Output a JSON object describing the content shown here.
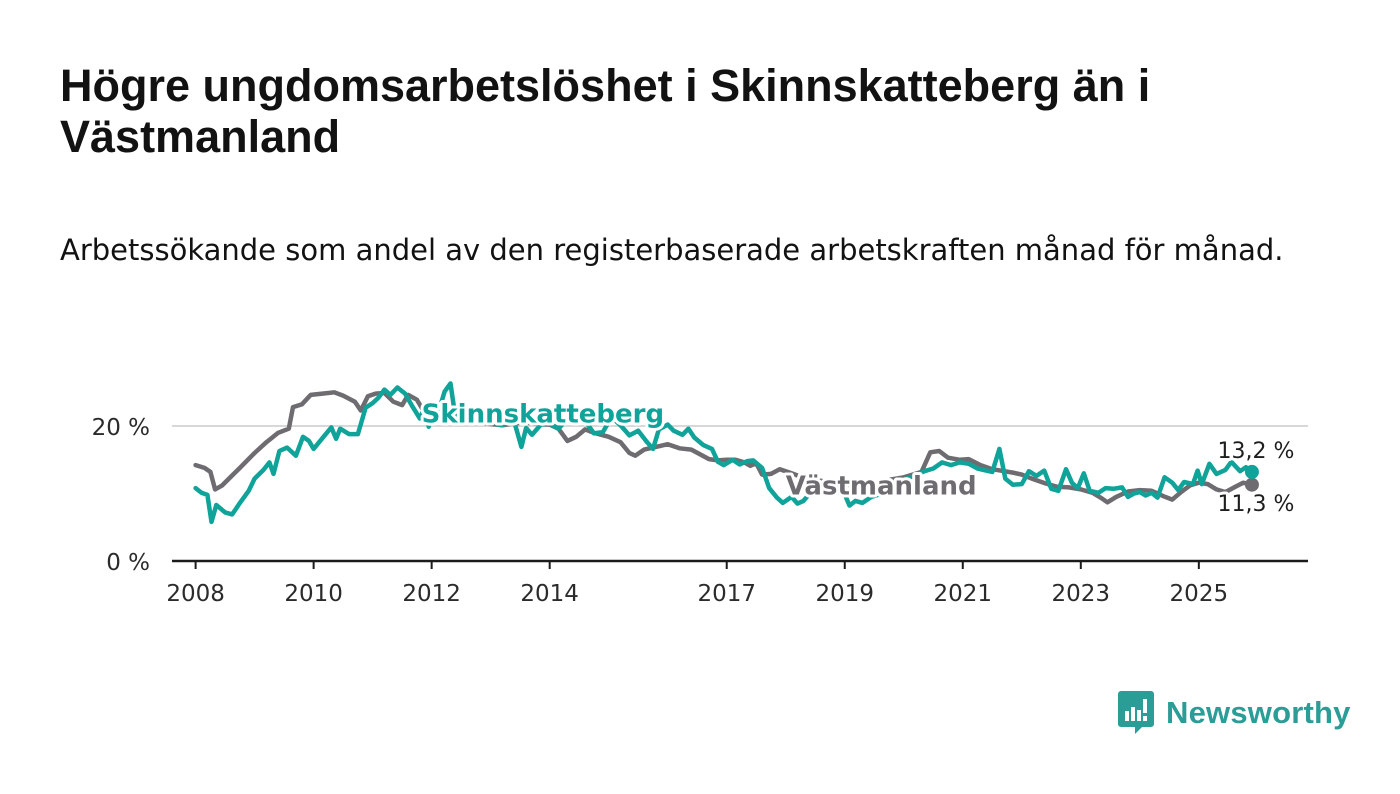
{
  "title": "Högre ungdomsarbetslöshet i Skinnskatteberg än i Västmanland",
  "subtitle": "Arbetssökande som andel av den registerbaserade arbetskraften månad för månad.",
  "logo_text": "Newsworthy",
  "colors": {
    "skinnskatteberg": "#0fa39a",
    "vastmanland": "#6e6c71",
    "axis": "#1b1b1b",
    "grid": "#d8d8d8",
    "logo": "#2a9d96"
  },
  "chart_data": {
    "type": "line",
    "title": "Högre ungdomsarbetslöshet i Skinnskatteberg än i Västmanland",
    "ylim": [
      0,
      25
    ],
    "xlim": [
      2007.6,
      2026.85
    ],
    "y_ticks": [
      {
        "value": 0,
        "label": "0 %"
      },
      {
        "value": 20,
        "label": "20 %"
      }
    ],
    "x_ticks": [
      {
        "value": 2008,
        "label": "2008"
      },
      {
        "value": 2010,
        "label": "2010"
      },
      {
        "value": 2012,
        "label": "2012"
      },
      {
        "value": 2014,
        "label": "2014"
      },
      {
        "value": 2017,
        "label": "2017"
      },
      {
        "value": 2019,
        "label": "2019"
      },
      {
        "value": 2021,
        "label": "2021"
      },
      {
        "value": 2023,
        "label": "2023"
      },
      {
        "value": 2025,
        "label": "2025"
      }
    ],
    "series": [
      {
        "name": "Västmanland",
        "label": "Västmanland",
        "end_label": "11,3 %",
        "points": [
          [
            2008.0,
            14.2
          ],
          [
            2008.15,
            13.8
          ],
          [
            2008.25,
            13.2
          ],
          [
            2008.33,
            10.6
          ],
          [
            2008.45,
            11.2
          ],
          [
            2008.6,
            12.5
          ],
          [
            2008.75,
            13.8
          ],
          [
            2009.0,
            16.0
          ],
          [
            2009.2,
            17.6
          ],
          [
            2009.4,
            19.0
          ],
          [
            2009.58,
            19.6
          ],
          [
            2009.65,
            22.8
          ],
          [
            2009.8,
            23.2
          ],
          [
            2009.95,
            24.6
          ],
          [
            2010.15,
            24.8
          ],
          [
            2010.35,
            25.0
          ],
          [
            2010.5,
            24.5
          ],
          [
            2010.7,
            23.6
          ],
          [
            2010.8,
            22.3
          ],
          [
            2010.92,
            24.4
          ],
          [
            2011.05,
            24.8
          ],
          [
            2011.2,
            24.9
          ],
          [
            2011.35,
            23.6
          ],
          [
            2011.5,
            23.1
          ],
          [
            2011.6,
            24.6
          ],
          [
            2011.75,
            23.9
          ],
          [
            2011.85,
            22.4
          ],
          [
            2011.95,
            22.5
          ],
          [
            2012.05,
            22.8
          ],
          [
            2012.15,
            21.9
          ],
          [
            2012.3,
            20.8
          ],
          [
            2012.45,
            21.2
          ],
          [
            2012.6,
            20.9
          ],
          [
            2012.8,
            20.6
          ],
          [
            2013.0,
            20.3
          ],
          [
            2013.2,
            20.1
          ],
          [
            2013.4,
            20.4
          ],
          [
            2013.6,
            20.5
          ],
          [
            2013.8,
            20.3
          ],
          [
            2014.0,
            20.2
          ],
          [
            2014.15,
            19.6
          ],
          [
            2014.3,
            17.8
          ],
          [
            2014.45,
            18.4
          ],
          [
            2014.6,
            19.5
          ],
          [
            2014.75,
            19.0
          ],
          [
            2015.0,
            18.4
          ],
          [
            2015.2,
            17.6
          ],
          [
            2015.35,
            16.0
          ],
          [
            2015.45,
            15.6
          ],
          [
            2015.6,
            16.5
          ],
          [
            2015.8,
            16.9
          ],
          [
            2016.0,
            17.3
          ],
          [
            2016.2,
            16.7
          ],
          [
            2016.4,
            16.5
          ],
          [
            2016.55,
            15.8
          ],
          [
            2016.7,
            15.1
          ],
          [
            2016.85,
            14.9
          ],
          [
            2017.0,
            15.0
          ],
          [
            2017.15,
            15.0
          ],
          [
            2017.3,
            14.6
          ],
          [
            2017.4,
            14.1
          ],
          [
            2017.5,
            14.5
          ],
          [
            2017.6,
            12.8
          ],
          [
            2017.75,
            12.9
          ],
          [
            2017.9,
            13.6
          ],
          [
            2018.1,
            13.0
          ],
          [
            2018.25,
            12.5
          ],
          [
            2018.35,
            12.4
          ],
          [
            2018.5,
            12.0
          ],
          [
            2018.65,
            11.8
          ],
          [
            2018.8,
            11.6
          ],
          [
            2019.0,
            11.4
          ],
          [
            2019.2,
            11.1
          ],
          [
            2019.4,
            11.3
          ],
          [
            2019.6,
            11.7
          ],
          [
            2019.8,
            12.1
          ],
          [
            2020.0,
            12.4
          ],
          [
            2020.15,
            12.8
          ],
          [
            2020.3,
            13.2
          ],
          [
            2020.45,
            16.1
          ],
          [
            2020.6,
            16.3
          ],
          [
            2020.75,
            15.3
          ],
          [
            2020.95,
            15.0
          ],
          [
            2021.1,
            15.1
          ],
          [
            2021.3,
            14.2
          ],
          [
            2021.5,
            13.6
          ],
          [
            2021.7,
            13.3
          ],
          [
            2021.85,
            13.1
          ],
          [
            2022.0,
            12.8
          ],
          [
            2022.2,
            12.1
          ],
          [
            2022.4,
            11.5
          ],
          [
            2022.6,
            11.0
          ],
          [
            2022.8,
            10.9
          ],
          [
            2023.0,
            10.6
          ],
          [
            2023.2,
            10.1
          ],
          [
            2023.35,
            9.3
          ],
          [
            2023.45,
            8.7
          ],
          [
            2023.6,
            9.5
          ],
          [
            2023.8,
            10.3
          ],
          [
            2024.0,
            10.5
          ],
          [
            2024.2,
            10.4
          ],
          [
            2024.4,
            9.6
          ],
          [
            2024.55,
            9.1
          ],
          [
            2024.7,
            10.2
          ],
          [
            2024.85,
            11.2
          ],
          [
            2025.0,
            11.6
          ],
          [
            2025.15,
            11.4
          ],
          [
            2025.3,
            10.6
          ],
          [
            2025.45,
            10.2
          ],
          [
            2025.6,
            10.9
          ],
          [
            2025.75,
            11.6
          ],
          [
            2025.9,
            11.3
          ]
        ]
      },
      {
        "name": "Skinnskatteberg",
        "label": "Skinnskatteberg",
        "end_label": "13,2 %",
        "points": [
          [
            2008.0,
            10.8
          ],
          [
            2008.1,
            10.1
          ],
          [
            2008.2,
            9.8
          ],
          [
            2008.27,
            5.8
          ],
          [
            2008.35,
            8.3
          ],
          [
            2008.5,
            7.2
          ],
          [
            2008.62,
            6.9
          ],
          [
            2008.75,
            8.6
          ],
          [
            2008.9,
            10.4
          ],
          [
            2009.0,
            12.2
          ],
          [
            2009.15,
            13.5
          ],
          [
            2009.25,
            14.6
          ],
          [
            2009.32,
            12.9
          ],
          [
            2009.42,
            16.3
          ],
          [
            2009.55,
            16.8
          ],
          [
            2009.7,
            15.6
          ],
          [
            2009.82,
            18.4
          ],
          [
            2009.92,
            17.8
          ],
          [
            2010.0,
            16.6
          ],
          [
            2010.15,
            18.2
          ],
          [
            2010.3,
            19.8
          ],
          [
            2010.38,
            18.1
          ],
          [
            2010.45,
            19.6
          ],
          [
            2010.6,
            18.8
          ],
          [
            2010.75,
            18.8
          ],
          [
            2010.88,
            22.7
          ],
          [
            2011.0,
            23.4
          ],
          [
            2011.1,
            24.2
          ],
          [
            2011.2,
            25.4
          ],
          [
            2011.3,
            24.6
          ],
          [
            2011.42,
            25.7
          ],
          [
            2011.55,
            24.8
          ],
          [
            2011.68,
            22.8
          ],
          [
            2011.8,
            21.1
          ],
          [
            2011.88,
            22.8
          ],
          [
            2011.95,
            19.9
          ],
          [
            2012.05,
            22.6
          ],
          [
            2012.15,
            23.1
          ],
          [
            2012.22,
            25.1
          ],
          [
            2012.32,
            26.3
          ],
          [
            2012.4,
            21.4
          ],
          [
            2012.5,
            22.7
          ],
          [
            2012.6,
            21.0
          ],
          [
            2012.7,
            22.4
          ],
          [
            2012.85,
            21.2
          ],
          [
            2013.0,
            21.6
          ],
          [
            2013.1,
            20.3
          ],
          [
            2013.2,
            20.1
          ],
          [
            2013.3,
            21.1
          ],
          [
            2013.4,
            20.6
          ],
          [
            2013.52,
            16.9
          ],
          [
            2013.6,
            19.7
          ],
          [
            2013.7,
            18.7
          ],
          [
            2013.85,
            20.2
          ],
          [
            2014.0,
            20.4
          ],
          [
            2014.15,
            19.6
          ],
          [
            2014.3,
            21.1
          ],
          [
            2014.45,
            21.0
          ],
          [
            2014.6,
            20.8
          ],
          [
            2014.75,
            18.9
          ],
          [
            2014.9,
            19.1
          ],
          [
            2015.05,
            21.3
          ],
          [
            2015.2,
            20.1
          ],
          [
            2015.35,
            18.6
          ],
          [
            2015.5,
            19.3
          ],
          [
            2015.65,
            17.6
          ],
          [
            2015.75,
            16.6
          ],
          [
            2015.85,
            19.5
          ],
          [
            2016.0,
            20.2
          ],
          [
            2016.1,
            19.3
          ],
          [
            2016.25,
            18.7
          ],
          [
            2016.35,
            19.6
          ],
          [
            2016.45,
            18.3
          ],
          [
            2016.6,
            17.2
          ],
          [
            2016.75,
            16.6
          ],
          [
            2016.85,
            14.7
          ],
          [
            2016.95,
            14.2
          ],
          [
            2017.1,
            15.0
          ],
          [
            2017.22,
            14.3
          ],
          [
            2017.35,
            14.8
          ],
          [
            2017.45,
            14.9
          ],
          [
            2017.6,
            13.8
          ],
          [
            2017.72,
            10.8
          ],
          [
            2017.85,
            9.4
          ],
          [
            2017.95,
            8.6
          ],
          [
            2018.1,
            9.5
          ],
          [
            2018.2,
            8.5
          ],
          [
            2018.3,
            8.9
          ],
          [
            2018.45,
            10.4
          ],
          [
            2018.6,
            10.3
          ],
          [
            2018.75,
            9.8
          ],
          [
            2018.9,
            10.2
          ],
          [
            2019.0,
            9.9
          ],
          [
            2019.08,
            8.2
          ],
          [
            2019.18,
            8.9
          ],
          [
            2019.3,
            8.6
          ],
          [
            2019.45,
            9.5
          ],
          [
            2019.6,
            9.9
          ],
          [
            2019.75,
            10.8
          ],
          [
            2019.9,
            11.3
          ],
          [
            2020.05,
            12.2
          ],
          [
            2020.2,
            12.7
          ],
          [
            2020.35,
            13.3
          ],
          [
            2020.5,
            13.7
          ],
          [
            2020.65,
            14.6
          ],
          [
            2020.8,
            14.2
          ],
          [
            2020.95,
            14.6
          ],
          [
            2021.1,
            14.4
          ],
          [
            2021.25,
            13.7
          ],
          [
            2021.35,
            13.5
          ],
          [
            2021.5,
            13.2
          ],
          [
            2021.62,
            16.6
          ],
          [
            2021.72,
            12.2
          ],
          [
            2021.85,
            11.3
          ],
          [
            2022.0,
            11.4
          ],
          [
            2022.12,
            13.3
          ],
          [
            2022.25,
            12.6
          ],
          [
            2022.38,
            13.4
          ],
          [
            2022.5,
            10.7
          ],
          [
            2022.62,
            10.4
          ],
          [
            2022.75,
            13.6
          ],
          [
            2022.85,
            11.6
          ],
          [
            2022.95,
            10.8
          ],
          [
            2023.05,
            13.0
          ],
          [
            2023.15,
            10.4
          ],
          [
            2023.3,
            10.1
          ],
          [
            2023.42,
            10.8
          ],
          [
            2023.55,
            10.7
          ],
          [
            2023.7,
            10.9
          ],
          [
            2023.8,
            9.5
          ],
          [
            2023.9,
            10.0
          ],
          [
            2024.0,
            10.2
          ],
          [
            2024.1,
            9.7
          ],
          [
            2024.2,
            10.1
          ],
          [
            2024.3,
            9.4
          ],
          [
            2024.42,
            12.4
          ],
          [
            2024.55,
            11.6
          ],
          [
            2024.65,
            10.5
          ],
          [
            2024.75,
            11.7
          ],
          [
            2024.9,
            11.4
          ],
          [
            2024.98,
            13.4
          ],
          [
            2025.05,
            11.4
          ],
          [
            2025.18,
            14.4
          ],
          [
            2025.3,
            12.9
          ],
          [
            2025.45,
            13.5
          ],
          [
            2025.55,
            14.7
          ],
          [
            2025.7,
            13.3
          ],
          [
            2025.8,
            13.9
          ],
          [
            2025.9,
            13.2
          ]
        ]
      }
    ]
  }
}
